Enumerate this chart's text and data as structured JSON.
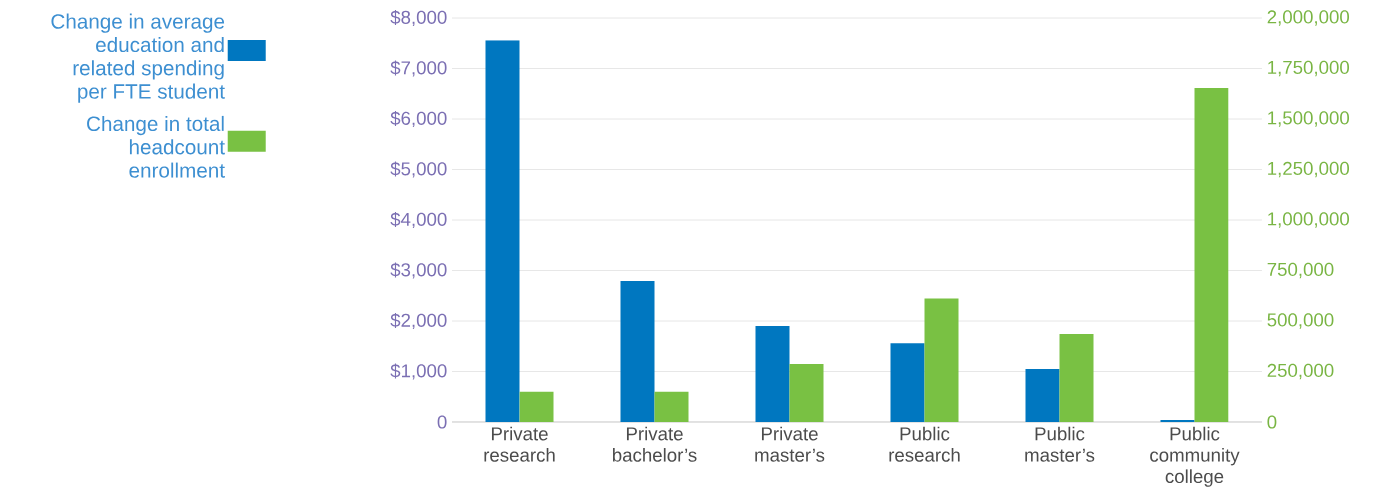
{
  "chart_data": {
    "type": "bar",
    "categories": [
      "Private research",
      "Private bachelor’s",
      "Private master’s",
      "Public research",
      "Public master’s",
      "Public community college"
    ],
    "series": [
      {
        "name": "Change in average education and related spending per FTE student",
        "color": "#0077c0",
        "axis": "y",
        "values": [
          7560,
          2790,
          1900,
          1560,
          1050,
          40
        ]
      },
      {
        "name": "Change in total headcount enrollment",
        "color": "#79c143",
        "axis": "y2",
        "values": [
          150000,
          150000,
          287000,
          612000,
          436000,
          1653000
        ]
      }
    ],
    "ylim": [
      0,
      8000
    ],
    "yticks": [
      {
        "value": 0,
        "label": "0"
      },
      {
        "value": 1000,
        "label": "$1,000"
      },
      {
        "value": 2000,
        "label": "$2,000"
      },
      {
        "value": 3000,
        "label": "$3,000"
      },
      {
        "value": 4000,
        "label": "$4,000"
      },
      {
        "value": 5000,
        "label": "$5,000"
      },
      {
        "value": 6000,
        "label": "$6,000"
      },
      {
        "value": 7000,
        "label": "$7,000"
      },
      {
        "value": 8000,
        "label": "$8,000"
      }
    ],
    "y2lim": [
      0,
      2000000
    ],
    "y2ticks": [
      {
        "value": 0,
        "label": "0"
      },
      {
        "value": 250000,
        "label": "250,000"
      },
      {
        "value": 500000,
        "label": "500,000"
      },
      {
        "value": 750000,
        "label": "750,000"
      },
      {
        "value": 1000000,
        "label": "1,000,000"
      },
      {
        "value": 1250000,
        "label": "1,250,000"
      },
      {
        "value": 1500000,
        "label": "1,500,000"
      },
      {
        "value": 1750000,
        "label": "1,750,000"
      },
      {
        "value": 2000000,
        "label": "2,000,000"
      }
    ],
    "grid": "y",
    "legend": "left"
  }
}
